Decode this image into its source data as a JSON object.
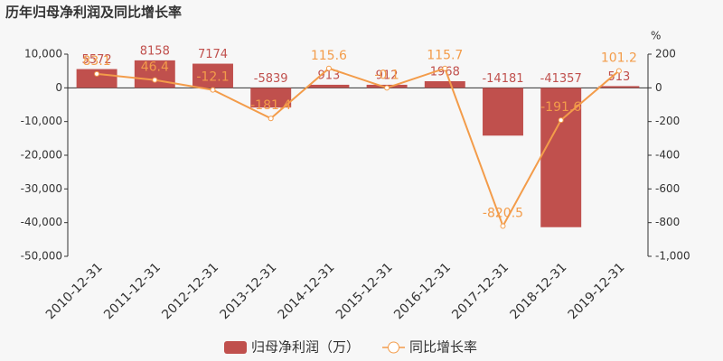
{
  "chart_data": {
    "type": "bar-line",
    "title": "历年归母净利润及同比增长率",
    "y2_unit": "%",
    "categories": [
      "2010-12-31",
      "2011-12-31",
      "2012-12-31",
      "2013-12-31",
      "2014-12-31",
      "2015-12-31",
      "2016-12-31",
      "2017-12-31",
      "2018-12-31",
      "2019-12-31"
    ],
    "series": [
      {
        "name": "归母净利润（万）",
        "type": "bar",
        "color": "#c0504d",
        "values": [
          5572,
          8158,
          7174,
          -5839,
          913,
          912,
          1968,
          -14181,
          -41357,
          513
        ]
      },
      {
        "name": "同比增长率",
        "type": "line",
        "axis": "y2",
        "color": "#f39c4a",
        "values": [
          83.1,
          46.4,
          -12.1,
          -181.4,
          115.6,
          -0.1,
          115.7,
          -820.5,
          -191.6,
          101.2
        ]
      }
    ],
    "ylim": [
      -50000,
      10000
    ],
    "yticks": [
      {
        "value": -50000,
        "label": "-50,000"
      },
      {
        "value": -40000,
        "label": "-40,000"
      },
      {
        "value": -30000,
        "label": "-30,000"
      },
      {
        "value": -20000,
        "label": "-20,000"
      },
      {
        "value": -10000,
        "label": "-10,000"
      },
      0,
      {
        "value": 10000,
        "label": "10,000"
      }
    ],
    "y2lim": [
      -1000,
      200
    ],
    "y2ticks": [
      {
        "value": -1000,
        "label": "-1,000"
      },
      -800,
      -600,
      -400,
      -200,
      0,
      200
    ]
  }
}
